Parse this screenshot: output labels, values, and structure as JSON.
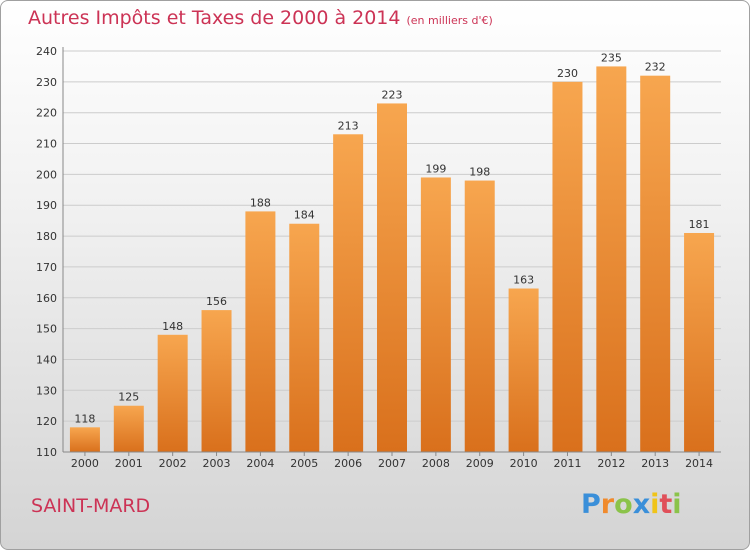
{
  "chart_data": {
    "type": "bar",
    "title": "Autres Impôts et Taxes de 2000 à 2014",
    "subtitle": "(en milliers d'€)",
    "categories": [
      "2000",
      "2001",
      "2002",
      "2003",
      "2004",
      "2005",
      "2006",
      "2007",
      "2008",
      "2009",
      "2010",
      "2011",
      "2012",
      "2013",
      "2014"
    ],
    "values": [
      118,
      125,
      148,
      156,
      188,
      184,
      213,
      223,
      199,
      198,
      163,
      230,
      235,
      232,
      181
    ],
    "ylim": [
      110,
      240
    ],
    "yticks": [
      110,
      120,
      130,
      140,
      150,
      160,
      170,
      180,
      190,
      200,
      210,
      220,
      230,
      240
    ],
    "grid": true,
    "colors": {
      "bar_top": "#f7a64f",
      "bar_bottom": "#d9701c",
      "title": "#cc3355",
      "grid": "#cccccc"
    }
  },
  "footer": {
    "city": "SAINT-MARD",
    "logo_letters": [
      {
        "ch": "P",
        "color": "#3a8fd9"
      },
      {
        "ch": "r",
        "color": "#f08a2c"
      },
      {
        "ch": "o",
        "color": "#8bc34a"
      },
      {
        "ch": "x",
        "color": "#3a8fd9"
      },
      {
        "ch": "i",
        "color": "#f0c419"
      },
      {
        "ch": "t",
        "color": "#e0505a"
      },
      {
        "ch": "i",
        "color": "#8bc34a"
      }
    ]
  }
}
